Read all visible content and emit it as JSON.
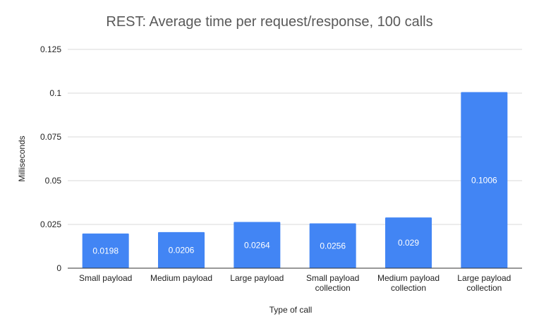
{
  "chart_data": {
    "type": "bar",
    "title": "REST: Average time per request/response, 100 calls",
    "xlabel": "Type of call",
    "ylabel": "Milliseconds",
    "ylim": [
      0,
      0.125
    ],
    "yticks": [
      "0",
      "0.025",
      "0.05",
      "0.075",
      "0.1",
      "0.125"
    ],
    "ytick_values": [
      0,
      0.025,
      0.05,
      0.075,
      0.1,
      0.125
    ],
    "categories": [
      [
        "Small payload"
      ],
      [
        "Medium payload"
      ],
      [
        "Large payload"
      ],
      [
        "Small payload",
        "collection"
      ],
      [
        "Medium payload",
        "collection"
      ],
      [
        "Large payload",
        "collection"
      ]
    ],
    "values": [
      0.0198,
      0.0206,
      0.0264,
      0.0256,
      0.029,
      0.1006
    ],
    "value_labels": [
      "0.0198",
      "0.0206",
      "0.0264",
      "0.0256",
      "0.029",
      "0.1006"
    ],
    "bar_color": "#4285f4",
    "grid": true,
    "legend": "none"
  }
}
